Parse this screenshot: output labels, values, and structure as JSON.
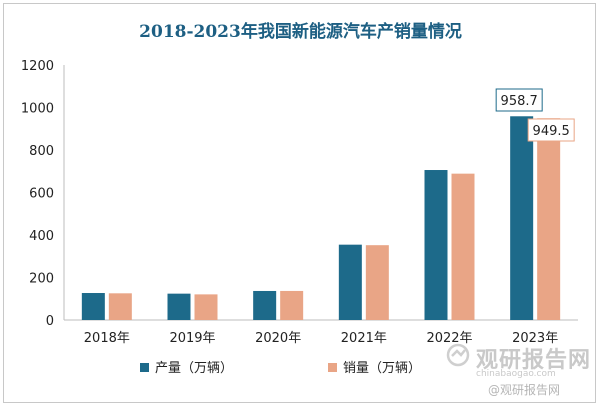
{
  "chart_data": {
    "type": "bar",
    "title": "2018-2023年我国新能源汽车产销量情况",
    "categories": [
      "2018年",
      "2019年",
      "2020年",
      "2021年",
      "2022年",
      "2023年"
    ],
    "series": [
      {
        "name": "产量（万辆）",
        "color": "#1d6a8a",
        "values": [
          127,
          124,
          136.6,
          354.5,
          705.8,
          958.7
        ]
      },
      {
        "name": "销量（万辆）",
        "color": "#e9a586",
        "values": [
          125.6,
          120.6,
          136.7,
          352.1,
          688.7,
          949.5
        ]
      }
    ],
    "data_labels": {
      "2023年": [
        "958.7",
        "949.5"
      ]
    },
    "ylim": [
      0,
      1200
    ],
    "yticks": [
      "0",
      "200",
      "400",
      "600",
      "800",
      "1000",
      "1200"
    ],
    "grid": false,
    "legend_position": "bottom"
  },
  "watermark": {
    "main": "观研报告网",
    "url": "chinabaogao.com",
    "badge": "@观研报告网"
  }
}
